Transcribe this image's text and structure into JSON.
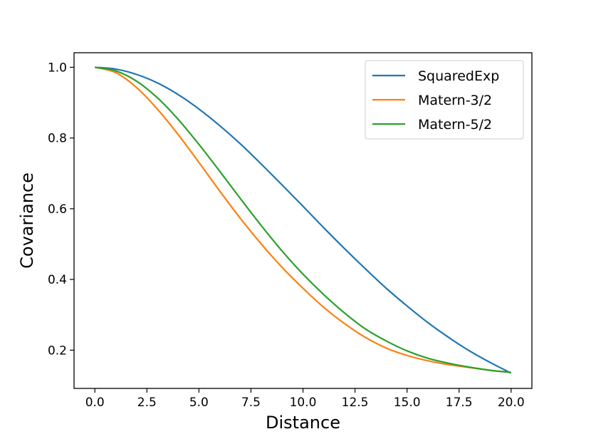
{
  "chart_data": {
    "type": "line",
    "xlabel": "Distance",
    "ylabel": "Covariance",
    "xlim": [
      -1.0,
      21.0
    ],
    "ylim": [
      0.0918,
      1.0412
    ],
    "xticks": [
      0.0,
      2.5,
      5.0,
      7.5,
      10.0,
      12.5,
      15.0,
      17.5,
      20.0
    ],
    "xtick_labels": [
      "0.0",
      "2.5",
      "5.0",
      "7.5",
      "10.0",
      "12.5",
      "15.0",
      "17.5",
      "20.0"
    ],
    "yticks": [
      0.2,
      0.4,
      0.6,
      0.8,
      1.0
    ],
    "ytick_labels": [
      "0.2",
      "0.4",
      "0.6",
      "0.8",
      "1.0"
    ],
    "grid": false,
    "legend_position": "top-right",
    "x": [
      0,
      1,
      2,
      3,
      4,
      5,
      6,
      7,
      8,
      9,
      10,
      11,
      12,
      13,
      14,
      15,
      16,
      17,
      18,
      19,
      20
    ],
    "series": [
      {
        "name": "SquaredExp",
        "color": "#1f77b4",
        "values": [
          1.0,
          0.995,
          0.98,
          0.956,
          0.923,
          0.882,
          0.835,
          0.783,
          0.726,
          0.667,
          0.607,
          0.546,
          0.487,
          0.43,
          0.375,
          0.325,
          0.278,
          0.236,
          0.198,
          0.165,
          0.135
        ]
      },
      {
        "name": "Matern-3/2",
        "color": "#ff7f0e",
        "values": [
          1.0,
          0.985,
          0.943,
          0.882,
          0.81,
          0.731,
          0.65,
          0.572,
          0.5,
          0.434,
          0.375,
          0.321,
          0.275,
          0.236,
          0.206,
          0.185,
          0.17,
          0.159,
          0.151,
          0.143,
          0.137
        ]
      },
      {
        "name": "Matern-5/2",
        "color": "#2ca02c",
        "values": [
          1.0,
          0.99,
          0.961,
          0.914,
          0.853,
          0.782,
          0.706,
          0.628,
          0.552,
          0.48,
          0.415,
          0.357,
          0.305,
          0.26,
          0.226,
          0.198,
          0.177,
          0.163,
          0.152,
          0.143,
          0.137
        ]
      }
    ]
  }
}
